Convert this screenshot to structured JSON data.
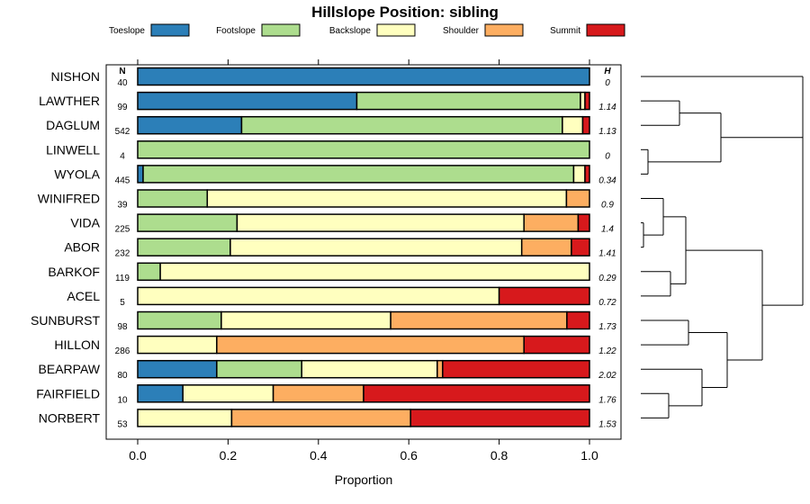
{
  "chart_data": {
    "type": "stacked-bar",
    "title": "Hillslope Position: sibling",
    "xlabel": "Proportion",
    "xlim": [
      0,
      1
    ],
    "x_ticks": [
      "0.0",
      "0.2",
      "0.4",
      "0.6",
      "0.8",
      "1.0"
    ],
    "n_header": "N",
    "h_header": "H",
    "legend": [
      {
        "name": "Toeslope",
        "color": "#2c7fb8"
      },
      {
        "name": "Footslope",
        "color": "#addd8e"
      },
      {
        "name": "Backslope",
        "color": "#ffffbf"
      },
      {
        "name": "Shoulder",
        "color": "#fdae61"
      },
      {
        "name": "Summit",
        "color": "#d7191c"
      }
    ],
    "rows": [
      {
        "name": "NISHON",
        "n": "40",
        "h": "0",
        "values": [
          1.0,
          0,
          0,
          0,
          0
        ]
      },
      {
        "name": "LAWTHER",
        "n": "99",
        "h": "1.14",
        "values": [
          0.485,
          0.495,
          0.01,
          0,
          0.01
        ]
      },
      {
        "name": "DAGLUM",
        "n": "542",
        "h": "1.13",
        "values": [
          0.23,
          0.71,
          0.045,
          0,
          0.015
        ]
      },
      {
        "name": "LINWELL",
        "n": "4",
        "h": "0",
        "values": [
          0,
          1.0,
          0,
          0,
          0
        ]
      },
      {
        "name": "WYOLA",
        "n": "445",
        "h": "0.34",
        "values": [
          0.012,
          0.953,
          0.025,
          0,
          0.01
        ]
      },
      {
        "name": "WINIFRED",
        "n": "39",
        "h": "0.9",
        "values": [
          0,
          0.154,
          0.795,
          0.051,
          0
        ]
      },
      {
        "name": "VIDA",
        "n": "225",
        "h": "1.4",
        "values": [
          0,
          0.22,
          0.635,
          0.12,
          0.025
        ]
      },
      {
        "name": "ABOR",
        "n": "232",
        "h": "1.41",
        "values": [
          0,
          0.205,
          0.645,
          0.11,
          0.04
        ]
      },
      {
        "name": "BARKOF",
        "n": "119",
        "h": "0.29",
        "values": [
          0,
          0.05,
          0.95,
          0,
          0
        ]
      },
      {
        "name": "ACEL",
        "n": "5",
        "h": "0.72",
        "values": [
          0,
          0,
          0.8,
          0,
          0.2
        ]
      },
      {
        "name": "SUNBURST",
        "n": "98",
        "h": "1.73",
        "values": [
          0,
          0.185,
          0.375,
          0.39,
          0.05
        ]
      },
      {
        "name": "HILLON",
        "n": "286",
        "h": "1.22",
        "values": [
          0,
          0,
          0.175,
          0.68,
          0.145
        ]
      },
      {
        "name": "BEARPAW",
        "n": "80",
        "h": "2.02",
        "values": [
          0.175,
          0.188,
          0.3,
          0.012,
          0.325
        ]
      },
      {
        "name": "FAIRFIELD",
        "n": "10",
        "h": "1.76",
        "values": [
          0.1,
          0,
          0.2,
          0.2,
          0.5
        ]
      },
      {
        "name": "NORBERT",
        "n": "53",
        "h": "1.53",
        "values": [
          0,
          0,
          0.208,
          0.396,
          0.396
        ]
      }
    ]
  }
}
